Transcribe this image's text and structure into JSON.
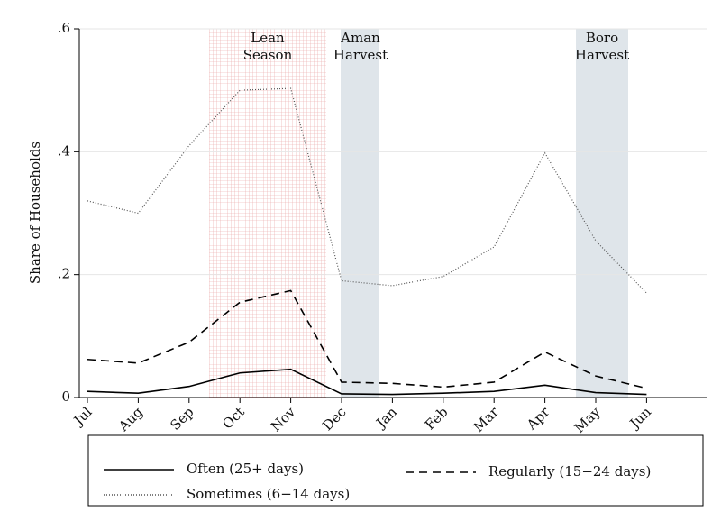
{
  "chart_data": {
    "type": "line",
    "y_label": "Share of Households",
    "categories": [
      "Jul",
      "Aug",
      "Sep",
      "Oct",
      "Nov",
      "Dec",
      "Jan",
      "Feb",
      "Mar",
      "Apr",
      "May",
      "Jun"
    ],
    "series": [
      {
        "name": "Often (25+ days)",
        "color": "#000000",
        "style": "solid",
        "values": [
          0.01,
          0.007,
          0.018,
          0.04,
          0.046,
          0.006,
          0.005,
          0.007,
          0.01,
          0.02,
          0.008,
          0.005
        ]
      },
      {
        "name": "Regularly (15−24 days)",
        "color": "#000000",
        "style": "dashed",
        "values": [
          0.062,
          0.056,
          0.09,
          0.155,
          0.174,
          0.025,
          0.023,
          0.017,
          0.025,
          0.074,
          0.035,
          0.015
        ]
      },
      {
        "name": "Sometimes (6−14 days)",
        "color": "#555555",
        "style": "dotted",
        "values": [
          0.32,
          0.3,
          0.41,
          0.5,
          0.503,
          0.19,
          0.182,
          0.197,
          0.245,
          0.398,
          0.255,
          0.17
        ]
      }
    ],
    "annotations": [
      [
        "Lean",
        "Season"
      ],
      [
        "Aman",
        "Harvest"
      ],
      [
        "Boro",
        "Harvest"
      ]
    ],
    "ylim": [
      0,
      0.6
    ],
    "yticks": [
      0,
      {
        "value": 0.2,
        "label": ".2"
      },
      {
        "value": 0.4,
        "label": ".4"
      },
      {
        "value": 0.6,
        "label": ".6"
      }
    ],
    "grid": true
  }
}
